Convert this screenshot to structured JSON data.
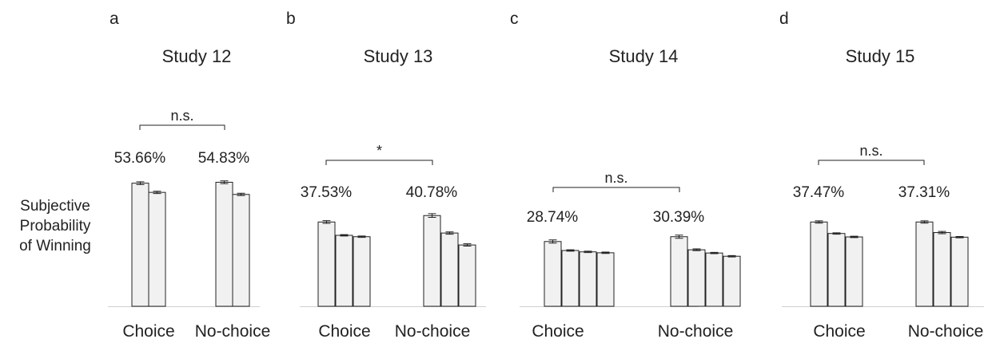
{
  "ylabel_lines": [
    "Subjective",
    "Probability",
    "of Winning"
  ],
  "chart_data": [
    {
      "type": "bar",
      "panel_letter": "a",
      "title": "Study 12",
      "categories": [
        "Choice",
        "No-choice"
      ],
      "group_values": [
        [
          0.536,
          0.496
        ],
        [
          0.54,
          0.487
        ]
      ],
      "errors": [
        [
          0.006,
          0.005
        ],
        [
          0.006,
          0.005
        ]
      ],
      "data_labels": [
        "53.66%",
        "54.83%"
      ],
      "significance": "n.s.",
      "ylim": [
        0,
        1.0
      ]
    },
    {
      "type": "bar",
      "panel_letter": "b",
      "title": "Study 13",
      "categories": [
        "Choice",
        "No-choice"
      ],
      "group_values": [
        [
          0.367,
          0.309,
          0.303
        ],
        [
          0.395,
          0.319,
          0.267
        ]
      ],
      "errors": [
        [
          0.006,
          0.003,
          0.003
        ],
        [
          0.008,
          0.005,
          0.005
        ]
      ],
      "data_labels": [
        "37.53%",
        "40.78%"
      ],
      "significance": "*",
      "ylim": [
        0,
        1.0
      ]
    },
    {
      "type": "bar",
      "panel_letter": "c",
      "title": "Study 14",
      "categories": [
        "Choice",
        "No-choice"
      ],
      "group_values": [
        [
          0.282,
          0.243,
          0.237,
          0.233
        ],
        [
          0.303,
          0.246,
          0.232,
          0.218
        ]
      ],
      "errors": [
        [
          0.007,
          0.003,
          0.003,
          0.003
        ],
        [
          0.007,
          0.004,
          0.003,
          0.003
        ]
      ],
      "data_labels": [
        "28.74%",
        "30.39%"
      ],
      "significance": "n.s.",
      "ylim": [
        0,
        1.0
      ]
    },
    {
      "type": "bar",
      "panel_letter": "d",
      "title": "Study 15",
      "categories": [
        "Choice",
        "No-choice"
      ],
      "group_values": [
        [
          0.367,
          0.317,
          0.302
        ],
        [
          0.367,
          0.321,
          0.301
        ]
      ],
      "errors": [
        [
          0.005,
          0.003,
          0.003
        ],
        [
          0.005,
          0.005,
          0.003
        ]
      ],
      "data_labels": [
        "37.47%",
        "37.31%"
      ],
      "significance": "n.s.",
      "ylim": [
        0,
        1.0
      ]
    }
  ]
}
